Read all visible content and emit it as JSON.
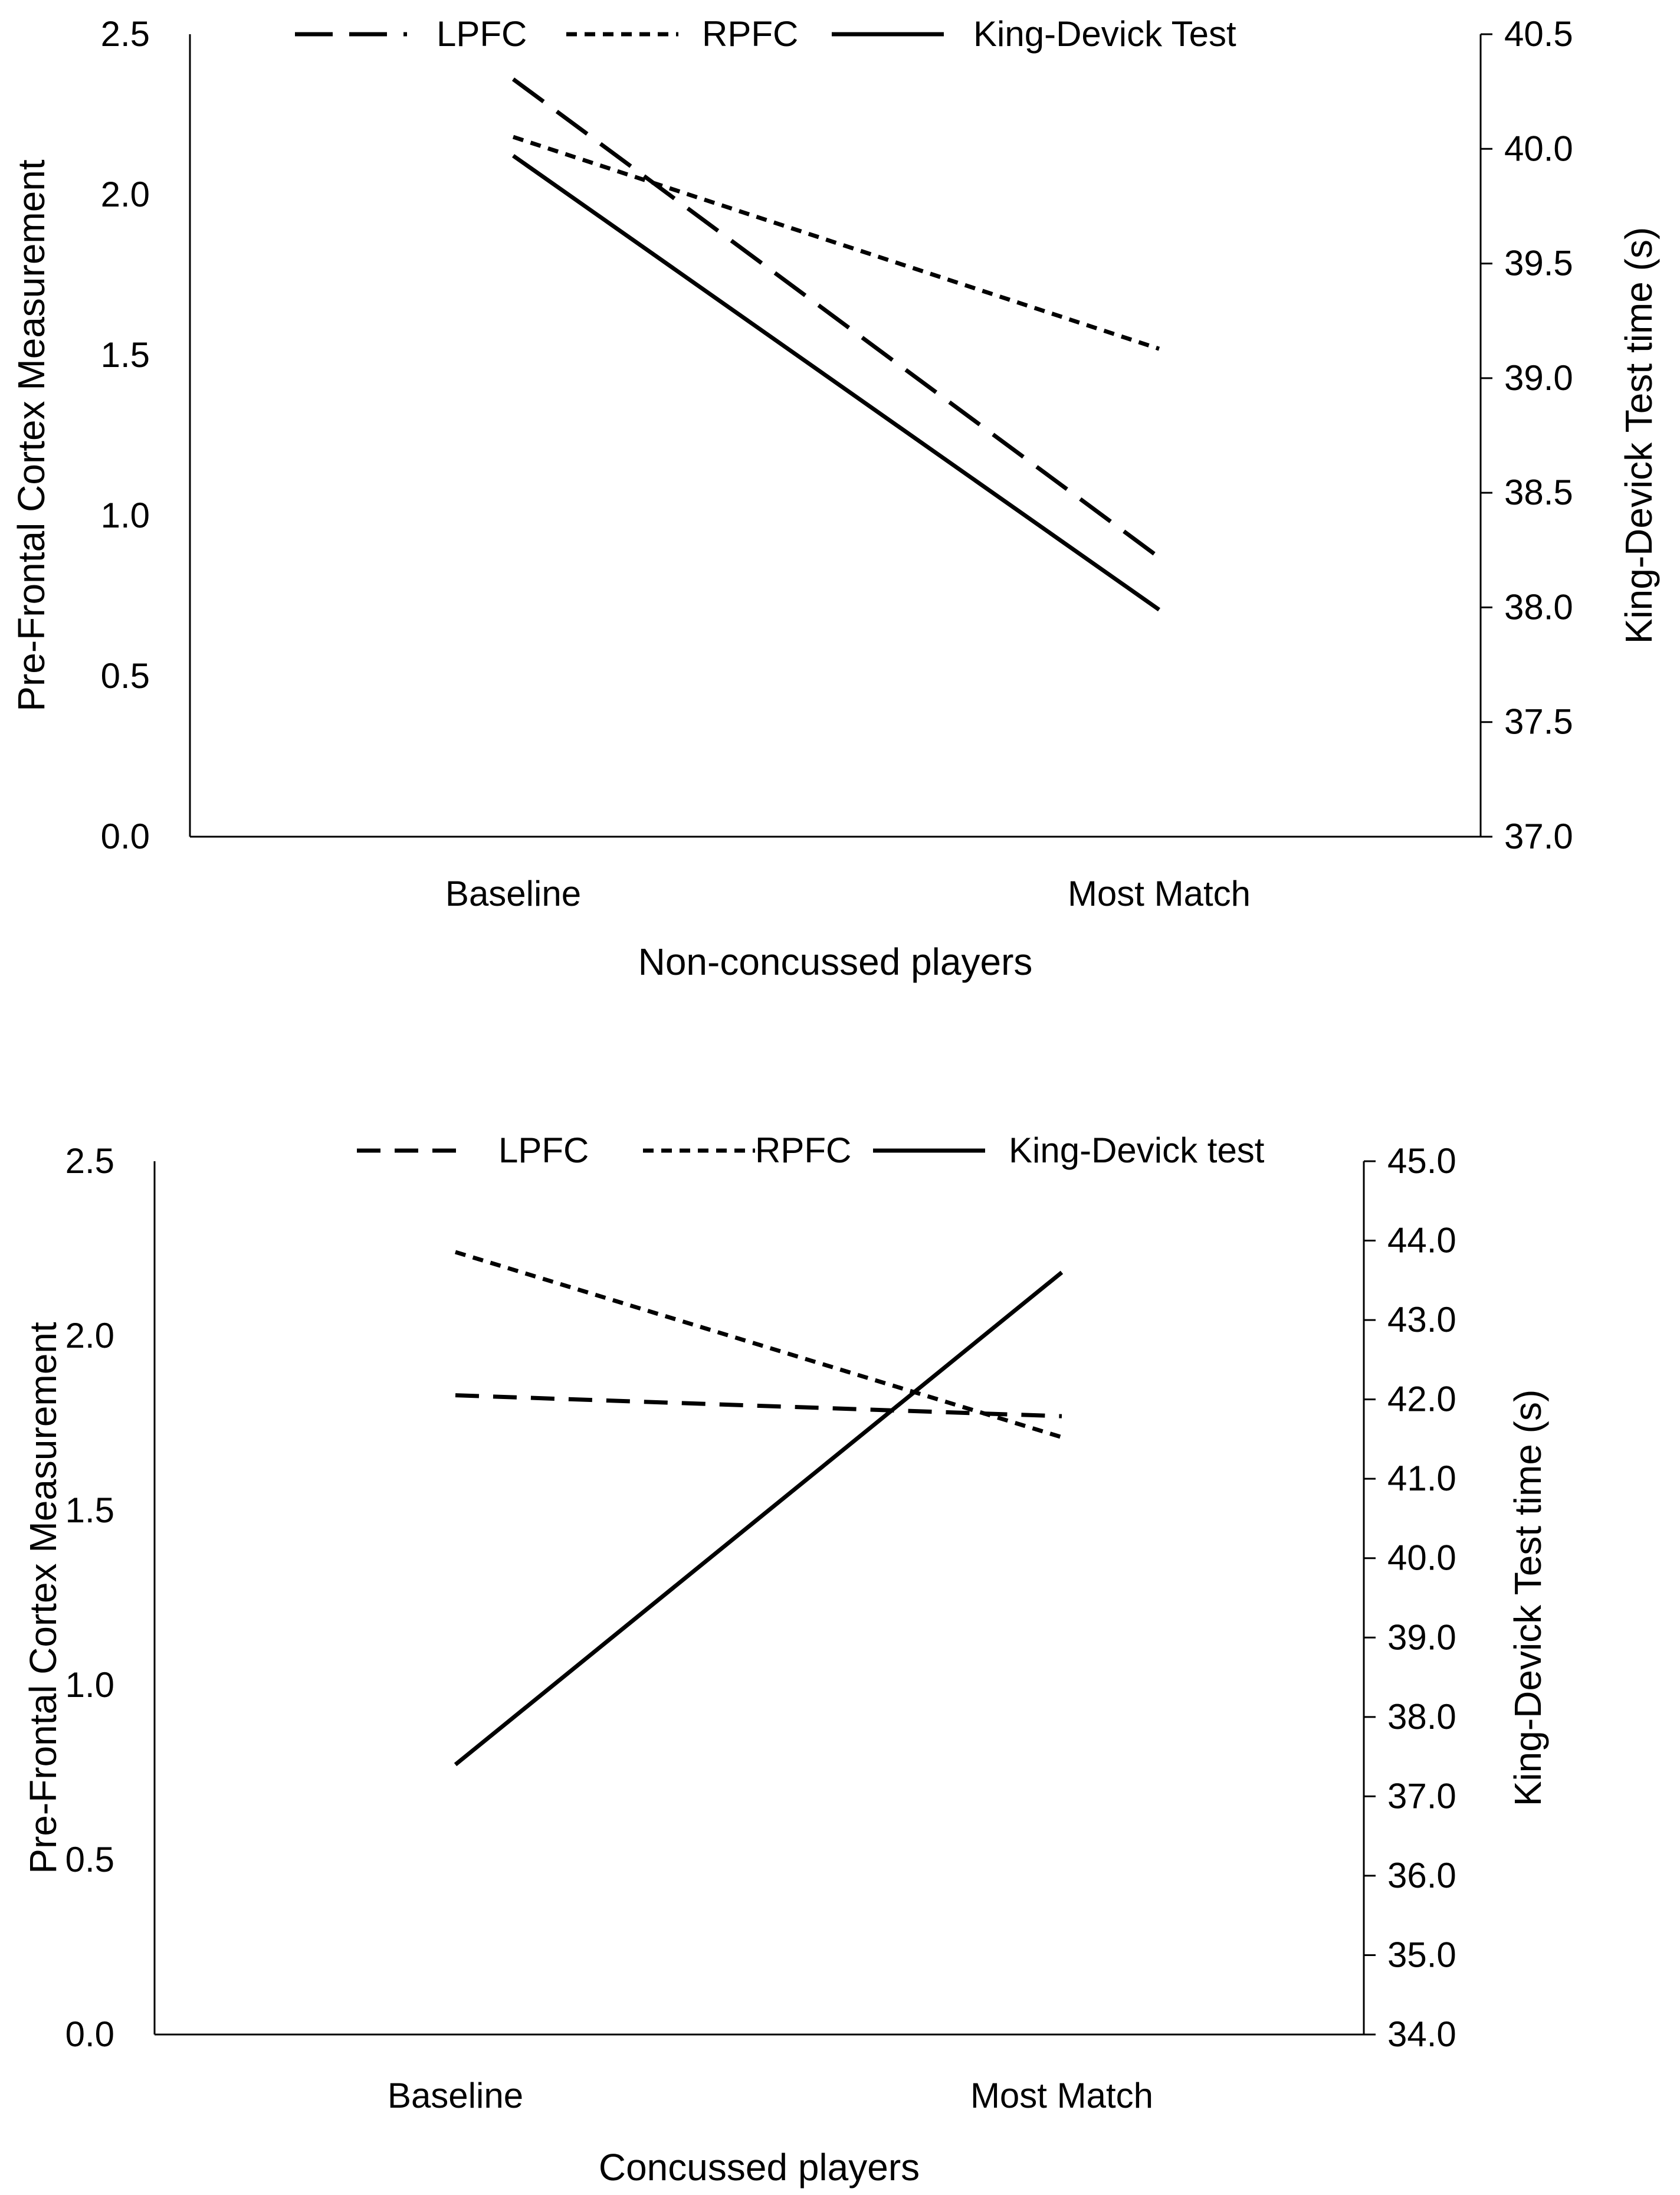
{
  "chart_data": [
    {
      "type": "line",
      "xlabel": "Non-concussed players",
      "ylabel": "Pre-Frontal Cortex Measurement",
      "y2label": "King-Devick Test time (s)",
      "categories": [
        "Baseline",
        "Most Match"
      ],
      "ylim": [
        0.0,
        2.5
      ],
      "y2lim": [
        37.0,
        40.5
      ],
      "yticks": [
        "0.0",
        "0.5",
        "1.0",
        "1.5",
        "2.0",
        "2.5"
      ],
      "y2ticks": [
        "37.0",
        "37.5",
        "38.0",
        "38.5",
        "39.0",
        "39.5",
        "40.0",
        "40.5"
      ],
      "legend_position": "top",
      "series": [
        {
          "name": "LPFC",
          "axis": "left",
          "style": "long-dash",
          "values": [
            2.36,
            0.87
          ]
        },
        {
          "name": "RPFC",
          "axis": "left",
          "style": "short-dash",
          "values": [
            2.18,
            1.52
          ]
        },
        {
          "name": "King-Devick Test",
          "axis": "right",
          "style": "solid",
          "values": [
            39.97,
            37.99
          ]
        }
      ]
    },
    {
      "type": "line",
      "xlabel": "Concussed players",
      "ylabel": "Pre-Frontal Cortex Measurement",
      "y2label": "King-Devick Test time (s)",
      "categories": [
        "Baseline",
        "Most Match"
      ],
      "ylim": [
        0.0,
        2.5
      ],
      "y2lim": [
        34.0,
        45.0
      ],
      "yticks": [
        "0.0",
        "0.5",
        "1.0",
        "1.5",
        "2.0",
        "2.5"
      ],
      "y2ticks": [
        "34.0",
        "35.0",
        "36.0",
        "37.0",
        "38.0",
        "39.0",
        "40.0",
        "41.0",
        "42.0",
        "43.0",
        "44.0",
        "45.0"
      ],
      "legend_position": "top",
      "series": [
        {
          "name": "LPFC",
          "axis": "left",
          "style": "medium-dash",
          "values": [
            1.83,
            1.77
          ]
        },
        {
          "name": "RPFC",
          "axis": "left",
          "style": "short-dash",
          "values": [
            2.24,
            1.71
          ]
        },
        {
          "name": "King-Devick test",
          "axis": "right",
          "style": "solid",
          "values": [
            37.4,
            43.6
          ]
        }
      ]
    }
  ]
}
